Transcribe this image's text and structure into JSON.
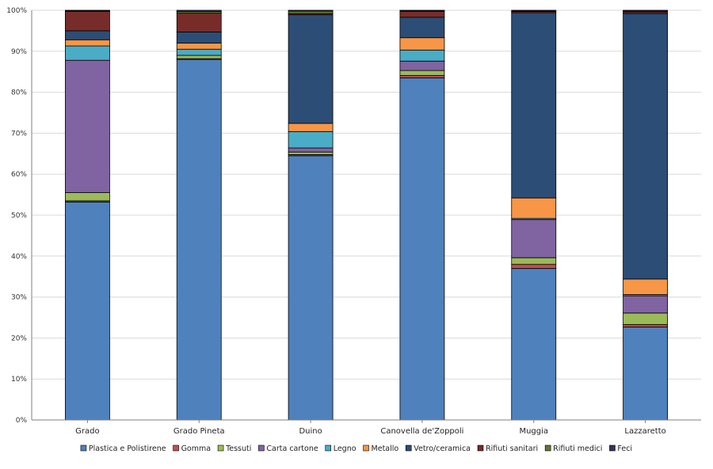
{
  "chart_data": {
    "type": "bar",
    "stacked": true,
    "normalized": true,
    "title": "",
    "xlabel": "",
    "ylabel": "",
    "ylim": [
      0,
      100
    ],
    "yticks": [
      "0%",
      "10%",
      "20%",
      "30%",
      "40%",
      "50%",
      "60%",
      "70%",
      "80%",
      "90%",
      "100%"
    ],
    "grid": "horizontal",
    "legend_position": "bottom",
    "categories": [
      "Grado",
      "Grado Pineta",
      "Duino",
      "Canovella de'Zoppoli",
      "Muggia",
      "Lazzaretto"
    ],
    "series": [
      {
        "name": "Plastica e Polistirene",
        "color": "#4f81bd",
        "values": [
          53.2,
          88.0,
          64.5,
          83.5,
          37.0,
          22.7
        ]
      },
      {
        "name": "Gomma",
        "color": "#c0504d",
        "values": [
          0.3,
          0.2,
          0.3,
          0.6,
          1.0,
          0.6
        ]
      },
      {
        "name": "Tessuti",
        "color": "#9bbb59",
        "values": [
          2.0,
          0.8,
          0.6,
          1.2,
          1.6,
          2.8
        ]
      },
      {
        "name": "Carta cartone",
        "color": "#8064a2",
        "values": [
          32.3,
          0.0,
          1.0,
          2.3,
          9.3,
          4.2
        ]
      },
      {
        "name": "Legno",
        "color": "#4bacc6",
        "values": [
          3.5,
          1.5,
          4.0,
          2.7,
          0.3,
          0.3
        ]
      },
      {
        "name": "Metallo",
        "color": "#f79646",
        "values": [
          1.5,
          1.5,
          2.0,
          3.0,
          5.0,
          3.8
        ]
      },
      {
        "name": "Vetro/ceramica",
        "color": "#2c4d75",
        "values": [
          2.2,
          2.7,
          26.5,
          5.0,
          45.2,
          64.8
        ]
      },
      {
        "name": "Rifiuti sanitari",
        "color": "#772c2a",
        "values": [
          4.7,
          4.6,
          0.3,
          1.4,
          0.3,
          0.4
        ]
      },
      {
        "name": "Rifiuti medici",
        "color": "#5f7530",
        "values": [
          0.2,
          0.4,
          0.6,
          0.2,
          0.1,
          0.2
        ]
      },
      {
        "name": "Feci",
        "color": "#3d2f5c",
        "values": [
          0.1,
          0.3,
          0.2,
          0.1,
          0.2,
          0.2
        ]
      }
    ]
  }
}
